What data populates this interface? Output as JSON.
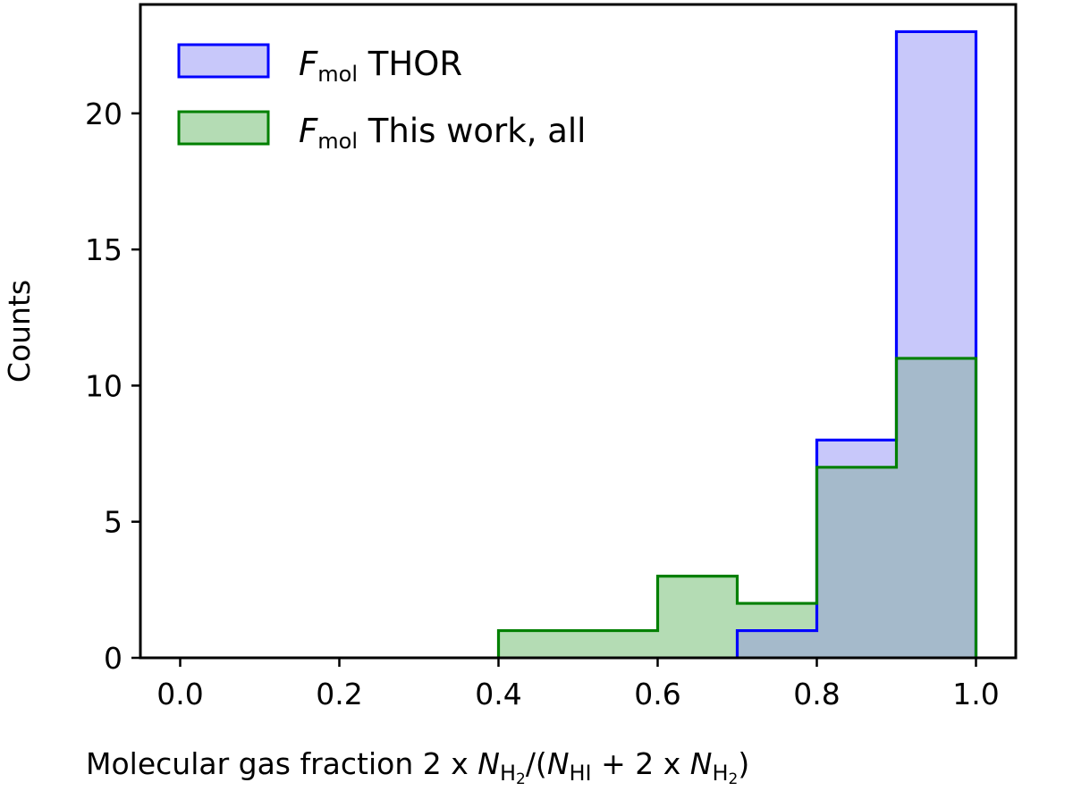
{
  "chart_data": {
    "type": "histogram",
    "xlabel_parts": {
      "prefix": "Molecular gas fraction 2 x ",
      "N": "N",
      "H2": "H",
      "H2_sub": "2",
      "open": "/(",
      "HI": "HI",
      "mid": " + 2 x ",
      "close": ")"
    },
    "ylabel": "Counts",
    "xlim": [
      -0.05,
      1.05
    ],
    "ylim": [
      0,
      24
    ],
    "xticks": [
      0.0,
      0.2,
      0.4,
      0.6,
      0.8,
      1.0
    ],
    "xtick_labels": [
      "0.0",
      "0.2",
      "0.4",
      "0.6",
      "0.8",
      "1.0"
    ],
    "yticks": [
      0,
      5,
      10,
      15,
      20
    ],
    "ytick_labels": [
      "0",
      "5",
      "10",
      "15",
      "20"
    ],
    "bin_edges": [
      0.4,
      0.5,
      0.6,
      0.7,
      0.8,
      0.9,
      1.0
    ],
    "legend_position": "upper-left",
    "series": [
      {
        "name_symbol": "F",
        "name_sub": "mol",
        "name_text": " THOR",
        "counts": [
          0,
          0,
          0,
          1,
          8,
          23
        ],
        "edge_color": "#0000ff",
        "fill_color": "#c8c8fa"
      },
      {
        "name_symbol": "F",
        "name_sub": "mol",
        "name_text": " This work, all",
        "counts": [
          1,
          1,
          3,
          2,
          7,
          11
        ],
        "edge_color": "#008000",
        "fill_color": "#b4dcb4"
      }
    ]
  }
}
